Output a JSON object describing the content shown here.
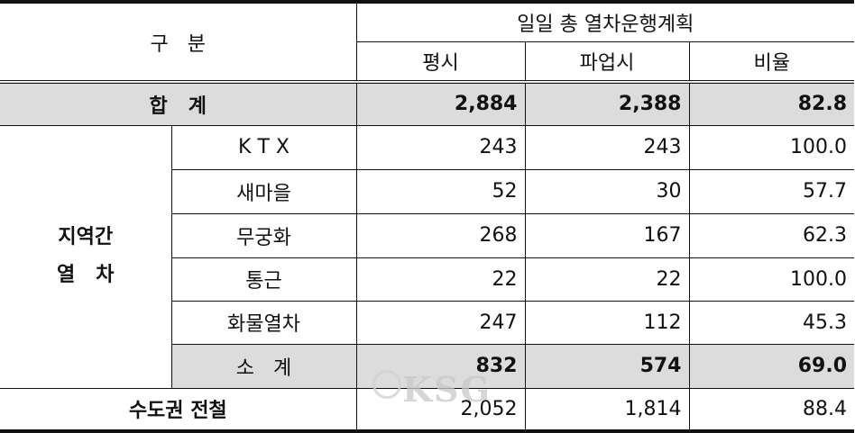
{
  "header": {
    "category": "구   분",
    "group_title": "일일 총 열차운행계획",
    "columns": [
      "평시",
      "파업시",
      "비율"
    ]
  },
  "total": {
    "label": "합   계",
    "values": [
      "2,884",
      "2,388",
      "82.8"
    ]
  },
  "intercity": {
    "group_label_line1": "지역간",
    "group_label_line2": "열   차",
    "rows": [
      {
        "label": "K T X",
        "values": [
          "243",
          "243",
          "100.0"
        ]
      },
      {
        "label": "새마을",
        "values": [
          "52",
          "30",
          "57.7"
        ]
      },
      {
        "label": "무궁화",
        "values": [
          "268",
          "167",
          "62.3"
        ]
      },
      {
        "label": "통근",
        "values": [
          "22",
          "22",
          "100.0"
        ]
      },
      {
        "label": "화물열차",
        "values": [
          "247",
          "112",
          "45.3"
        ]
      }
    ],
    "subtotal": {
      "label": "소   계",
      "values": [
        "832",
        "574",
        "69.0"
      ]
    }
  },
  "metro": {
    "label": "수도권 전철",
    "values": [
      "2,052",
      "1,814",
      "88.4"
    ]
  },
  "watermark": "KSG"
}
